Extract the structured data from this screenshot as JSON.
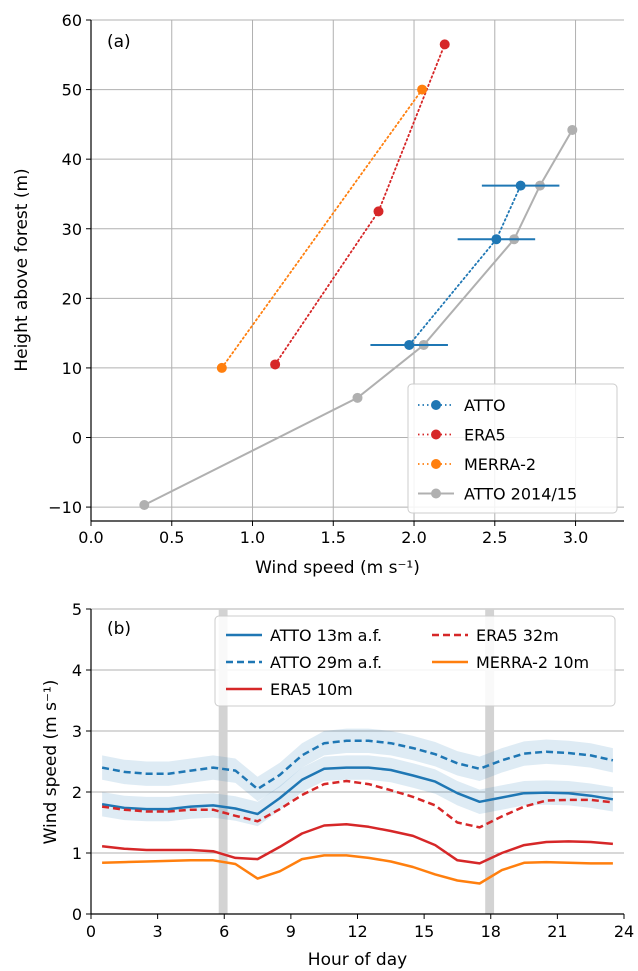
{
  "chart_data": [
    {
      "panel": "(a)",
      "type": "line",
      "xlabel": "Wind speed (m s⁻¹)",
      "ylabel": "Height above forest (m)",
      "xlim": [
        0.0,
        3.3
      ],
      "ylim": [
        -12,
        60
      ],
      "xticks": [
        0.0,
        0.5,
        1.0,
        1.5,
        2.0,
        2.5,
        3.0
      ],
      "xtick_labels": [
        "0.0",
        "0.5",
        "1.0",
        "1.5",
        "2.0",
        "2.5",
        "3.0"
      ],
      "yticks": [
        -10,
        0,
        10,
        20,
        30,
        40,
        50,
        60
      ],
      "ytick_labels": [
        "−10",
        "0",
        "10",
        "20",
        "30",
        "40",
        "50",
        "60"
      ],
      "grid": true,
      "legend_position": "bottom-right",
      "series": [
        {
          "name": "ATTO",
          "color": "#1f77b4",
          "style": "dotted",
          "marker": "circle",
          "x": [
            1.97,
            2.51,
            2.66
          ],
          "y": [
            13.3,
            28.5,
            36.2
          ],
          "xerr": [
            0.24,
            0.24,
            0.24
          ]
        },
        {
          "name": "ERA5",
          "color": "#d62728",
          "style": "dotted",
          "marker": "circle",
          "x": [
            1.14,
            1.78,
            2.19
          ],
          "y": [
            10.5,
            32.5,
            56.5
          ]
        },
        {
          "name": "MERRA-2",
          "color": "#ff7f0e",
          "style": "dotted",
          "marker": "circle",
          "x": [
            0.81,
            2.05
          ],
          "y": [
            10.0,
            50.0
          ]
        },
        {
          "name": "ATTO 2014/15",
          "color": "#b0b0b0",
          "style": "solid",
          "marker": "circle",
          "x": [
            0.33,
            1.65,
            2.06,
            2.62,
            2.78,
            2.98
          ],
          "y": [
            -9.7,
            5.7,
            13.3,
            28.5,
            36.2,
            44.2
          ]
        }
      ]
    },
    {
      "panel": "(b)",
      "type": "line",
      "xlabel": "Hour of day",
      "ylabel": "Wind speed (m s⁻¹)",
      "xlim": [
        0,
        24
      ],
      "ylim": [
        0,
        5
      ],
      "xticks": [
        0,
        3,
        6,
        9,
        12,
        15,
        18,
        21,
        24
      ],
      "xtick_labels": [
        "0",
        "3",
        "6",
        "9",
        "12",
        "15",
        "18",
        "21",
        "24"
      ],
      "yticks": [
        0,
        1,
        2,
        3,
        4,
        5
      ],
      "ytick_labels": [
        "0",
        "1",
        "2",
        "3",
        "4",
        "5"
      ],
      "grid": "horizontal",
      "legend_position": "top-right",
      "legend_columns": 2,
      "shaded_bands_x": [
        [
          5.75,
          6.15
        ],
        [
          17.75,
          18.15
        ]
      ],
      "shaded_bands_color": "#d3d3d3",
      "x": [
        0.5,
        1.5,
        2.5,
        3.5,
        4.5,
        5.5,
        6.5,
        7.5,
        8.5,
        9.5,
        10.5,
        11.5,
        12.5,
        13.5,
        14.5,
        15.5,
        16.5,
        17.5,
        18.5,
        19.5,
        20.5,
        21.5,
        22.5,
        23.5
      ],
      "series": [
        {
          "name": "ATTO 13m a.f.",
          "color": "#1f77b4",
          "style": "solid",
          "values": [
            1.8,
            1.74,
            1.72,
            1.72,
            1.76,
            1.78,
            1.73,
            1.64,
            1.9,
            2.2,
            2.38,
            2.4,
            2.4,
            2.36,
            2.27,
            2.17,
            1.98,
            1.84,
            1.91,
            1.98,
            1.99,
            1.98,
            1.94,
            1.88
          ],
          "band": 0.2
        },
        {
          "name": "ATTO 29m a.f.",
          "color": "#1f77b4",
          "style": "dashed",
          "values": [
            2.4,
            2.33,
            2.3,
            2.3,
            2.35,
            2.4,
            2.35,
            2.05,
            2.28,
            2.6,
            2.8,
            2.84,
            2.84,
            2.8,
            2.72,
            2.62,
            2.47,
            2.38,
            2.52,
            2.63,
            2.66,
            2.64,
            2.6,
            2.52
          ],
          "band": 0.2
        },
        {
          "name": "ERA5 10m",
          "color": "#d62728",
          "style": "solid",
          "values": [
            1.11,
            1.07,
            1.05,
            1.05,
            1.05,
            1.03,
            0.92,
            0.9,
            1.1,
            1.32,
            1.45,
            1.47,
            1.43,
            1.36,
            1.28,
            1.13,
            0.88,
            0.83,
            1.0,
            1.13,
            1.18,
            1.19,
            1.18,
            1.15
          ]
        },
        {
          "name": "ERA5 32m",
          "color": "#d62728",
          "style": "dashed",
          "values": [
            1.76,
            1.71,
            1.68,
            1.68,
            1.71,
            1.71,
            1.61,
            1.52,
            1.72,
            1.95,
            2.13,
            2.18,
            2.13,
            2.03,
            1.92,
            1.78,
            1.5,
            1.42,
            1.6,
            1.76,
            1.86,
            1.87,
            1.87,
            1.83
          ]
        },
        {
          "name": "MERRA-2 10m",
          "color": "#ff7f0e",
          "style": "solid",
          "values": [
            0.84,
            0.85,
            0.86,
            0.87,
            0.88,
            0.88,
            0.82,
            0.58,
            0.7,
            0.9,
            0.96,
            0.96,
            0.92,
            0.86,
            0.77,
            0.65,
            0.55,
            0.5,
            0.72,
            0.84,
            0.85,
            0.84,
            0.83,
            0.83
          ]
        }
      ]
    }
  ]
}
